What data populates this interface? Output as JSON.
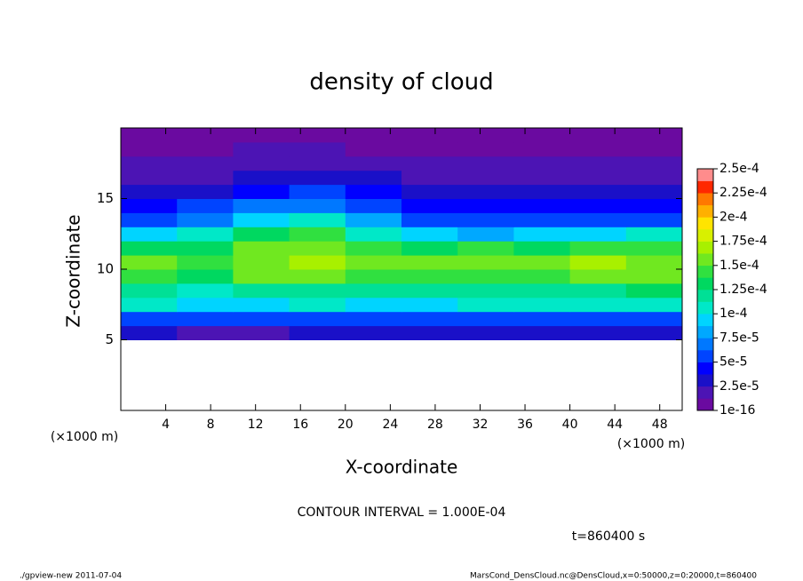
{
  "chart_data": {
    "type": "contour",
    "title": "density of cloud",
    "xlabel": "X-coordinate",
    "ylabel": "Z-coordinate",
    "xunits": "(×1000 m)",
    "yunits": "(×1000 m)",
    "xlim": [
      0,
      50
    ],
    "ylim": [
      0,
      20
    ],
    "xticks": [
      4,
      8,
      12,
      16,
      20,
      24,
      28,
      32,
      36,
      40,
      44,
      48
    ],
    "yticks": [
      5,
      10,
      15
    ],
    "x": [
      2.5,
      7.5,
      12.5,
      17.5,
      22.5,
      27.5,
      32.5,
      37.5,
      42.5,
      47.5
    ],
    "z": [
      5.5,
      6.5,
      7.5,
      8.5,
      9.5,
      10.5,
      11.5,
      12.5,
      13.5,
      14.5,
      15.5,
      16.5,
      17.5,
      18.5,
      19.5
    ],
    "values": [
      [
        3e-05,
        2e-05,
        2e-05,
        3e-05,
        3e-05,
        3e-05,
        3e-05,
        3e-05,
        3e-05,
        3e-05
      ],
      [
        6e-05,
        6e-05,
        5e-05,
        6e-05,
        6e-05,
        6e-05,
        6e-05,
        6e-05,
        6e-05,
        6e-05
      ],
      [
        0.0001,
        9e-05,
        9e-05,
        0.0001,
        9e-05,
        9e-05,
        0.0001,
        0.0001,
        0.0001,
        0.0001
      ],
      [
        0.00012,
        0.00011,
        0.00012,
        0.00012,
        0.00012,
        0.00012,
        0.00012,
        0.00012,
        0.00012,
        0.00013
      ],
      [
        0.00014,
        0.00013,
        0.00015,
        0.00015,
        0.00014,
        0.00014,
        0.00014,
        0.00014,
        0.00015,
        0.00015
      ],
      [
        0.00015,
        0.00014,
        0.00016,
        0.00017,
        0.00015,
        0.00015,
        0.00016,
        0.00015,
        0.00017,
        0.00016
      ],
      [
        0.00013,
        0.00013,
        0.00015,
        0.00016,
        0.00014,
        0.00013,
        0.00014,
        0.00013,
        0.00014,
        0.00014
      ],
      [
        9e-05,
        0.00011,
        0.00013,
        0.00014,
        0.00011,
        9e-05,
        8e-05,
        9e-05,
        9e-05,
        0.0001
      ],
      [
        6e-05,
        7e-05,
        9e-05,
        0.0001,
        8e-05,
        6e-05,
        5e-05,
        5e-05,
        6e-05,
        6e-05
      ],
      [
        4e-05,
        5e-05,
        7e-05,
        7e-05,
        5e-05,
        4e-05,
        4e-05,
        4e-05,
        4e-05,
        4e-05
      ],
      [
        3e-05,
        3e-05,
        4e-05,
        5e-05,
        4e-05,
        3e-05,
        3e-05,
        3e-05,
        3e-05,
        3e-05
      ],
      [
        2e-05,
        2e-05,
        3e-05,
        3e-05,
        3e-05,
        2e-05,
        2e-05,
        2e-05,
        2e-05,
        2e-05
      ],
      [
        1.5e-05,
        1.5e-05,
        2e-05,
        2e-05,
        2e-05,
        1.5e-05,
        1.5e-05,
        1.5e-05,
        1.5e-05,
        1.5e-05
      ],
      [
        1e-05,
        1e-05,
        1.5e-05,
        1.5e-05,
        1e-05,
        1e-05,
        1e-05,
        1e-05,
        1e-05,
        1e-05
      ],
      [
        5e-06,
        5e-06,
        5e-06,
        1e-05,
        5e-06,
        5e-06,
        5e-06,
        5e-06,
        5e-06,
        5e-06
      ]
    ],
    "levels": [
      {
        "value": 1e-16,
        "label": "1e-16"
      },
      {
        "value": 2.5e-05,
        "label": "2.5e-5"
      },
      {
        "value": 5e-05,
        "label": "5e-5"
      },
      {
        "value": 7.5e-05,
        "label": "7.5e-5"
      },
      {
        "value": 0.0001,
        "label": "1e-4"
      },
      {
        "value": 0.000125,
        "label": "1.25e-4"
      },
      {
        "value": 0.00015,
        "label": "1.5e-4"
      },
      {
        "value": 0.000175,
        "label": "1.75e-4"
      },
      {
        "value": 0.0002,
        "label": "2e-4"
      },
      {
        "value": 0.000225,
        "label": "2.25e-4"
      },
      {
        "value": 0.00025,
        "label": "2.5e-4"
      }
    ],
    "colors": [
      "#6a0aa0",
      "#4c14b4",
      "#1a10c8",
      "#0000ff",
      "#0044ff",
      "#0078ff",
      "#00a8ff",
      "#00d4ff",
      "#00e8c8",
      "#00e096",
      "#00d860",
      "#30e040",
      "#70e820",
      "#a8f000",
      "#d8f000",
      "#ffe400",
      "#ffb000",
      "#ff7800",
      "#ff2800",
      "#ff8c8c"
    ],
    "contour_note": "CONTOUR INTERVAL = 1.000E-04",
    "time_label": "t=860400 s",
    "footer_left": "./gpview-new   2011-07-04",
    "footer_right": "MarsCond_DensCloud.nc@DensCloud,x=0:50000,z=0:20000,t=860400"
  }
}
